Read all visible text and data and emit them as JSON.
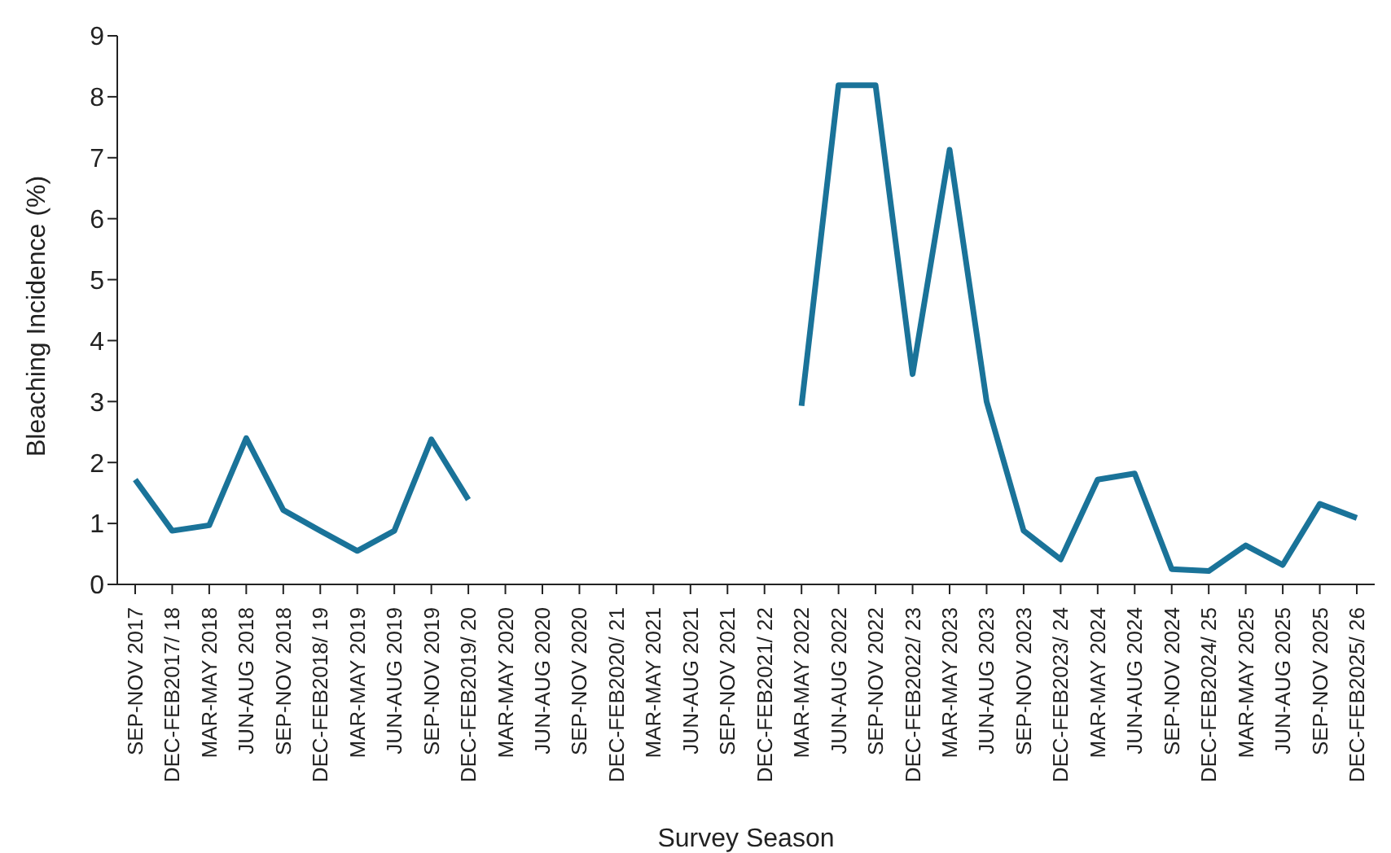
{
  "chart_data": {
    "type": "line",
    "xlabel": "Survey Season",
    "ylabel": "Bleaching Incidence (%)",
    "categories": [
      "SEP-NOV 2017",
      "DEC-FEB2017/ 18",
      "MAR-MAY 2018",
      "JUN-AUG 2018",
      "SEP-NOV 2018",
      "DEC-FEB2018/ 19",
      "MAR-MAY 2019",
      "JUN-AUG 2019",
      "SEP-NOV 2019",
      "DEC-FEB2019/ 20",
      "MAR-MAY 2020",
      "JUN-AUG 2020",
      "SEP-NOV 2020",
      "DEC-FEB2020/ 21",
      "MAR-MAY 2021",
      "JUN-AUG 2021",
      "SEP-NOV 2021",
      "DEC-FEB2021/ 22",
      "MAR-MAY 2022",
      "JUN-AUG 2022",
      "SEP-NOV 2022",
      "DEC-FEB2022/ 23",
      "MAR-MAY 2023",
      "JUN-AUG 2023",
      "SEP-NOV 2023",
      "DEC-FEB2023/ 24",
      "MAR-MAY 2024",
      "JUN-AUG 2024",
      "SEP-NOV 2024",
      "DEC-FEB2024/ 25",
      "MAR-MAY 2025",
      "JUN-AUG 2025",
      "SEP-NOV 2025",
      "DEC-FEB2025/ 26"
    ],
    "series": [
      {
        "color": "#1a7399",
        "values": [
          1.72,
          0.88,
          0.97,
          2.4,
          1.22,
          0.88,
          0.55,
          0.88,
          2.38,
          1.39,
          null,
          null,
          null,
          null,
          null,
          null,
          null,
          null,
          2.93,
          8.19,
          8.19,
          3.45,
          7.13,
          3.0,
          0.88,
          0.41,
          1.72,
          1.82,
          0.25,
          0.22,
          0.64,
          0.32,
          1.32,
          1.09
        ]
      }
    ],
    "ylim": [
      0,
      9
    ],
    "yticks": [
      0,
      1,
      2,
      3,
      4,
      5,
      6,
      7,
      8,
      9
    ],
    "grid": false,
    "legend": false,
    "marker": "none",
    "line_style": "solid"
  }
}
